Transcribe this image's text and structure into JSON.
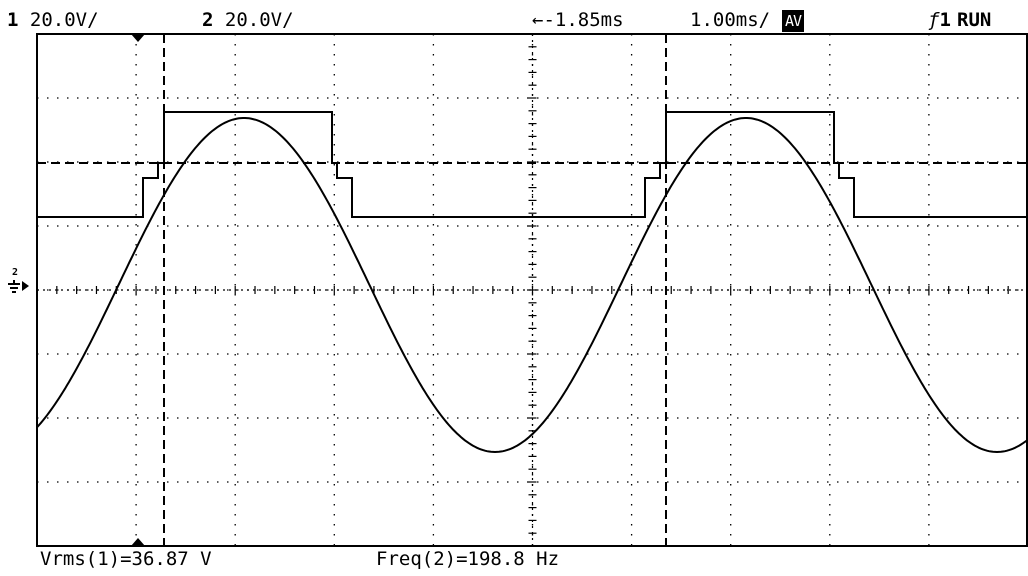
{
  "status": {
    "ch1_num": "1",
    "ch1_scale": "20.0V/",
    "ch2_num": "2",
    "ch2_scale": "20.0V/",
    "delay": "←-1.85ms",
    "timebase": "1.00ms/",
    "acq_mode": "AV",
    "trigger_channel": "1",
    "run_state": "RUN"
  },
  "measurements": {
    "vrms": "Vrms(1)=36.87 V",
    "freq": "Freq(2)=198.8 Hz"
  },
  "markers": {
    "ground_ch": "2"
  },
  "colors": {
    "background": "#ffffff",
    "trace": "#000000",
    "grid": "#000000"
  },
  "icons": {
    "trigger_edge": "rising-edge-icon",
    "ground": "ground-marker-icon",
    "time_marker": "triangle-marker-icon"
  }
}
